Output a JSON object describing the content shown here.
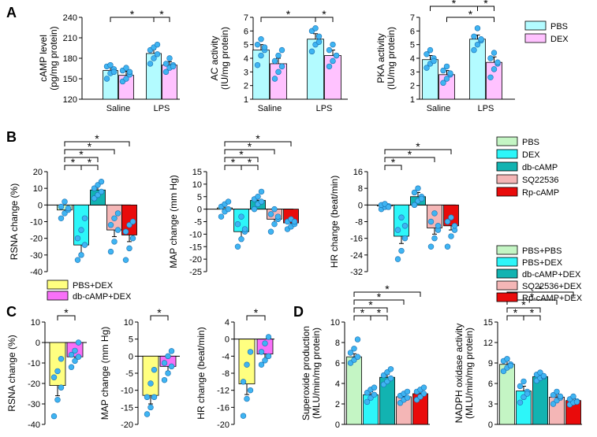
{
  "panel_letters": [
    "A",
    "B",
    "C",
    "D"
  ],
  "colors": {
    "PBS": "#b3fbff",
    "DEX_A": "#ffc2ff",
    "green": "#c4f5c4",
    "cyan": "#2df6f9",
    "teal": "#12b3b1",
    "pink": "#f4b6b6",
    "red": "#e90b0b",
    "yellow": "#ffff80",
    "magenta": "#f870f8",
    "dot": "#3fb4f2",
    "dot_edge": "#1a6fb0"
  },
  "chart_data": [
    {
      "id": "A1",
      "type": "bar",
      "categories": [
        "Saline",
        "LPS"
      ],
      "groups_per_category": 2,
      "series": [
        {
          "name": "PBS",
          "values": [
            162,
            187
          ]
        },
        {
          "name": "DEX",
          "values": [
            155,
            170
          ]
        }
      ],
      "errors": [
        [
          5,
          6
        ],
        [
          6,
          5
        ]
      ],
      "points": [
        [
          [
            150,
            158,
            164,
            168,
            170,
            160
          ],
          [
            146,
            150,
            156,
            162,
            166,
            160
          ]
        ],
        [
          [
            172,
            180,
            186,
            192,
            196,
            200
          ],
          [
            160,
            166,
            170,
            172,
            180,
            168
          ]
        ]
      ],
      "ylabel": "cAMP level\n(pg/mg protein)",
      "ylim": [
        120,
        240
      ],
      "yticks": [
        120,
        150,
        180,
        210,
        240
      ],
      "sig": [
        {
          "from": 0,
          "to": 2,
          "level": 1
        },
        {
          "from": 2,
          "to": 3,
          "level": 1
        }
      ]
    },
    {
      "id": "A2",
      "type": "bar",
      "categories": [
        "Saline",
        "LPS"
      ],
      "groups_per_category": 2,
      "series": [
        {
          "name": "PBS",
          "values": [
            4.6,
            5.4
          ]
        },
        {
          "name": "DEX",
          "values": [
            3.6,
            4.2
          ]
        }
      ],
      "errors": [
        [
          0.4,
          0.4
        ],
        [
          0.4,
          0.4
        ]
      ],
      "points": [
        [
          [
            3.5,
            4.2,
            4.6,
            5.0,
            5.4,
            4.8
          ],
          [
            2.5,
            3.0,
            3.4,
            3.8,
            4.2,
            4.6
          ]
        ],
        [
          [
            4.5,
            5.0,
            5.6,
            6.0,
            6.2,
            5.2
          ],
          [
            3.4,
            3.8,
            4.2,
            4.6,
            5.0,
            4.2
          ]
        ]
      ],
      "ylabel": "AC activity\n(IU/mg protein)",
      "ylim": [
        1,
        7
      ],
      "yticks": [
        1,
        2,
        3,
        4,
        5,
        6,
        7
      ],
      "sig": [
        {
          "from": 0,
          "to": 2,
          "level": 1
        },
        {
          "from": 2,
          "to": 3,
          "level": 1
        }
      ]
    },
    {
      "id": "A3",
      "type": "bar",
      "categories": [
        "Saline",
        "LPS"
      ],
      "groups_per_category": 2,
      "series": [
        {
          "name": "PBS",
          "values": [
            3.9,
            5.4
          ]
        },
        {
          "name": "DEX",
          "values": [
            2.8,
            3.7
          ]
        }
      ],
      "errors": [
        [
          0.3,
          0.3
        ],
        [
          0.3,
          0.4
        ]
      ],
      "points": [
        [
          [
            3.3,
            3.6,
            4.0,
            4.3,
            4.6,
            3.8
          ],
          [
            2.2,
            2.5,
            2.8,
            3.1,
            3.4,
            2.9
          ]
        ],
        [
          [
            4.6,
            5.0,
            5.3,
            5.6,
            6.2,
            5.4
          ],
          [
            2.6,
            3.2,
            3.6,
            4.0,
            4.4,
            3.7
          ]
        ]
      ],
      "ylabel": "PKA activity\n(IU/mg protein)",
      "ylim": [
        1,
        7
      ],
      "yticks": [
        1,
        2,
        3,
        4,
        5,
        6,
        7
      ],
      "sig": [
        {
          "from": 0,
          "to": 2,
          "level": 2
        },
        {
          "from": 2,
          "to": 3,
          "level": 2
        },
        {
          "from": 1,
          "to": 3,
          "level": 1
        }
      ]
    },
    {
      "id": "B1",
      "type": "bar",
      "categories": [
        "PBS",
        "DEX",
        "db-cAMP",
        "SQ22536",
        "Rp-cAMP"
      ],
      "values": [
        -3,
        -24,
        9,
        -15,
        -18
      ],
      "errors": [
        2,
        5,
        2.5,
        4,
        4
      ],
      "points": [
        [
          -8,
          -5,
          -3,
          -1,
          2,
          -2
        ],
        [
          -33,
          -30,
          -24,
          -20,
          -15,
          -8
        ],
        [
          4,
          6,
          8,
          10,
          12,
          14
        ],
        [
          -28,
          -22,
          -15,
          -12,
          -8,
          -5
        ],
        [
          -33,
          -26,
          -20,
          -16,
          -12,
          -10
        ]
      ],
      "ylabel": "RSNA change (%)",
      "ylim": [
        -40,
        20
      ],
      "yticks": [
        -40,
        -30,
        -20,
        -10,
        0,
        10,
        20
      ],
      "sig": [
        {
          "from": 0,
          "to": 1,
          "level": 1
        },
        {
          "from": 1,
          "to": 2,
          "level": 1
        },
        {
          "from": 0,
          "to": 2,
          "level": 2
        },
        {
          "from": 0,
          "to": 3,
          "level": 3
        },
        {
          "from": 0,
          "to": 4,
          "level": 4
        }
      ]
    },
    {
      "id": "B2",
      "type": "bar",
      "categories": [
        "PBS",
        "DEX",
        "db-cAMP",
        "SQ22536",
        "Rp-cAMP"
      ],
      "values": [
        0.5,
        -9,
        3.5,
        -4,
        -5.5
      ],
      "errors": [
        1.2,
        2.5,
        1.2,
        1.5,
        1
      ],
      "points": [
        [
          -3,
          -1,
          0,
          1,
          2,
          3
        ],
        [
          -15,
          -12,
          -9,
          -6,
          -3,
          -8
        ],
        [
          0,
          2,
          3,
          4,
          5,
          7
        ],
        [
          -9,
          -6,
          -4,
          -2,
          0,
          -3
        ],
        [
          -8,
          -7,
          -6,
          -5,
          -4,
          -5
        ]
      ],
      "ylabel": "MAP change (mm Hg)",
      "ylim": [
        -25,
        15
      ],
      "yticks": [
        -25,
        -20,
        -15,
        -10,
        -5,
        0,
        5,
        10,
        15
      ],
      "sig": [
        {
          "from": 0,
          "to": 1,
          "level": 1
        },
        {
          "from": 1,
          "to": 2,
          "level": 1
        },
        {
          "from": 0,
          "to": 2,
          "level": 2
        },
        {
          "from": 0,
          "to": 3,
          "level": 3
        },
        {
          "from": 0,
          "to": 4,
          "level": 4
        }
      ]
    },
    {
      "id": "B3",
      "type": "bar",
      "categories": [
        "PBS",
        "DEX",
        "db-cAMP",
        "SQ22536",
        "Rp-cAMP"
      ],
      "values": [
        -0.5,
        -15,
        4,
        -11,
        -10
      ],
      "errors": [
        0.8,
        3.5,
        2,
        3,
        2
      ],
      "points": [
        [
          -2,
          -1,
          -0.5,
          0,
          0.5,
          -1
        ],
        [
          -26,
          -22,
          -16,
          -12,
          -6,
          -10
        ],
        [
          0,
          2,
          4,
          6,
          8,
          3
        ],
        [
          -20,
          -16,
          -12,
          -8,
          -4,
          -10
        ],
        [
          -20,
          -15,
          -12,
          -8,
          -6,
          -10
        ]
      ],
      "ylabel": "HR change (beat/min)",
      "ylim": [
        -32,
        16
      ],
      "yticks": [
        -32,
        -24,
        -16,
        -8,
        0,
        8,
        16
      ],
      "sig": [
        {
          "from": 0,
          "to": 1,
          "level": 1
        },
        {
          "from": 0,
          "to": 3,
          "level": 2
        },
        {
          "from": 0,
          "to": 4,
          "level": 3
        }
      ]
    },
    {
      "id": "C1",
      "type": "bar",
      "categories": [
        "PBS+DEX",
        "db-cAMP+DEX"
      ],
      "values": [
        -21,
        -7
      ],
      "errors": [
        5,
        2
      ],
      "points": [
        [
          -36,
          -28,
          -22,
          -17,
          -14,
          -8
        ],
        [
          -12,
          -9,
          -7,
          -6,
          -4,
          0
        ]
      ],
      "ylabel": "RSNA change (%)",
      "ylim": [
        -40,
        10
      ],
      "yticks": [
        -40,
        -30,
        -20,
        -10,
        0,
        10
      ],
      "sig": [
        {
          "from": 0,
          "to": 1,
          "level": 1
        }
      ]
    },
    {
      "id": "C2",
      "type": "bar",
      "categories": [
        "PBS+DEX",
        "db-cAMP+DEX"
      ],
      "values": [
        -11.5,
        -3
      ],
      "errors": [
        2.5,
        1.5
      ],
      "points": [
        [
          -17,
          -15,
          -12,
          -12,
          -8,
          -4
        ],
        [
          -7,
          -5,
          -3,
          -2,
          0,
          1.5
        ]
      ],
      "ylabel": "MAP change (mm Hg)",
      "ylim": [
        -20,
        10
      ],
      "yticks": [
        -20,
        -15,
        -10,
        -5,
        0,
        5,
        10
      ],
      "sig": [
        {
          "from": 0,
          "to": 1,
          "level": 1
        }
      ]
    },
    {
      "id": "C3",
      "type": "bar",
      "categories": [
        "PBS+DEX",
        "db-cAMP+DEX"
      ],
      "values": [
        -10.5,
        -3.5
      ],
      "errors": [
        2.5,
        1.5
      ],
      "points": [
        [
          -18,
          -14,
          -12,
          -10,
          -6,
          -3
        ],
        [
          -6,
          -5,
          -4,
          -3,
          -1,
          0.5
        ]
      ],
      "ylabel": "HR change (beat/min)",
      "ylim": [
        -20,
        4
      ],
      "yticks": [
        -20,
        -16,
        -12,
        -8,
        -4,
        0,
        4
      ],
      "sig": [
        {
          "from": 0,
          "to": 1,
          "level": 1
        }
      ]
    },
    {
      "id": "D1",
      "type": "bar",
      "categories": [
        "PBS+PBS",
        "PBS+DEX",
        "db-cAMP+DEX",
        "SQ22536+DEX",
        "Rp-cAMP+DEX"
      ],
      "values": [
        6.6,
        2.9,
        4.6,
        2.7,
        3.0
      ],
      "errors": [
        0.3,
        0.3,
        0.3,
        0.2,
        0.3
      ],
      "points": [
        [
          6,
          6.3,
          6.6,
          7,
          7.4,
          8.3
        ],
        [
          2.2,
          2.6,
          2.9,
          3.1,
          3.4,
          3.6
        ],
        [
          3.9,
          4.2,
          4.5,
          4.8,
          5.1,
          5.4
        ],
        [
          2.1,
          2.4,
          2.6,
          2.8,
          3,
          3.2
        ],
        [
          2.4,
          2.7,
          3,
          3.2,
          3.4,
          3.6
        ]
      ],
      "ylabel": "Superoxide production\n(MLU/min/mg protein)",
      "ylim": [
        0,
        10
      ],
      "yticks": [
        0,
        2,
        4,
        6,
        8,
        10
      ],
      "sig": [
        {
          "from": 0,
          "to": 1,
          "level": 1
        },
        {
          "from": 1,
          "to": 2,
          "level": 1
        },
        {
          "from": 0,
          "to": 2,
          "level": 2
        },
        {
          "from": 0,
          "to": 3,
          "level": 3
        },
        {
          "from": 0,
          "to": 4,
          "level": 4
        }
      ]
    },
    {
      "id": "D2",
      "type": "bar",
      "categories": [
        "PBS+PBS",
        "PBS+DEX",
        "db-cAMP+DEX",
        "SQ22536+DEX",
        "Rp-cAMP+DEX"
      ],
      "values": [
        8.8,
        4.9,
        7.0,
        4.0,
        3.5
      ],
      "errors": [
        0.5,
        0.7,
        0.3,
        0.5,
        0.3
      ],
      "points": [
        [
          7.8,
          8.3,
          8.8,
          9.3,
          9.6,
          8.6
        ],
        [
          3.2,
          4,
          4.8,
          5.6,
          6.3,
          4.5
        ],
        [
          6.4,
          6.8,
          7,
          7.3,
          7.6,
          7.1
        ],
        [
          3,
          3.5,
          3.9,
          4.3,
          4.8,
          4.1
        ],
        [
          2.9,
          3.2,
          3.4,
          3.7,
          4.1,
          3.3
        ]
      ],
      "ylabel": "NADPH oxidase activity\n(MLU/min/mg protein)",
      "ylim": [
        0,
        15
      ],
      "yticks": [
        0,
        3,
        6,
        9,
        12,
        15
      ],
      "sig": [
        {
          "from": 0,
          "to": 1,
          "level": 1
        },
        {
          "from": 1,
          "to": 2,
          "level": 1
        },
        {
          "from": 0,
          "to": 2,
          "level": 2
        },
        {
          "from": 0,
          "to": 3,
          "level": 3
        },
        {
          "from": 0,
          "to": 4,
          "level": 4
        }
      ]
    }
  ],
  "legends": {
    "A": [
      "PBS",
      "DEX"
    ],
    "B": [
      "PBS",
      "DEX",
      "db-cAMP",
      "SQ22536",
      "Rp-cAMP"
    ],
    "C": [
      "PBS+DEX",
      "db-cAMP+DEX"
    ],
    "D": [
      "PBS+PBS",
      "PBS+DEX",
      "db-cAMP+DEX",
      "SQ22536+DEX",
      "Rp-cAMP+DEX"
    ]
  },
  "sig_mark": "*"
}
